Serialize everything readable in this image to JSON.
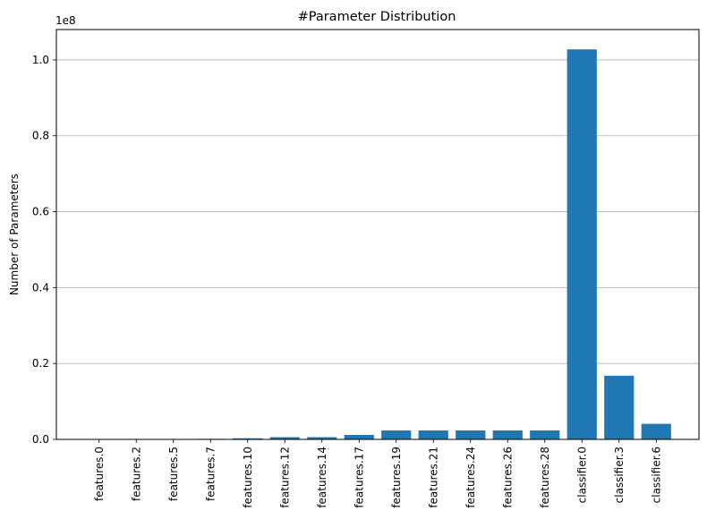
{
  "chart_data": {
    "type": "bar",
    "title": "#Parameter Distribution",
    "xlabel": "",
    "ylabel": "Number of Parameters",
    "y_offset_label": "1e8",
    "categories": [
      "features.0",
      "features.2",
      "features.5",
      "features.7",
      "features.10",
      "features.12",
      "features.14",
      "features.17",
      "features.19",
      "features.21",
      "features.24",
      "features.26",
      "features.28",
      "classifier.0",
      "classifier.3",
      "classifier.6"
    ],
    "values": [
      1792,
      36928,
      73856,
      147584,
      295168,
      590080,
      590080,
      1180160,
      2359808,
      2359808,
      2359808,
      2359808,
      2359808,
      102764544,
      16781312,
      4097000
    ],
    "ylim": [
      0,
      108000000
    ],
    "yticks": [
      0,
      20000000,
      40000000,
      60000000,
      80000000,
      100000000
    ],
    "ytick_labels": [
      "0.0",
      "0.2",
      "0.4",
      "0.6",
      "0.8",
      "1.0"
    ],
    "grid": "y",
    "bar_color": "#1f77b4"
  }
}
